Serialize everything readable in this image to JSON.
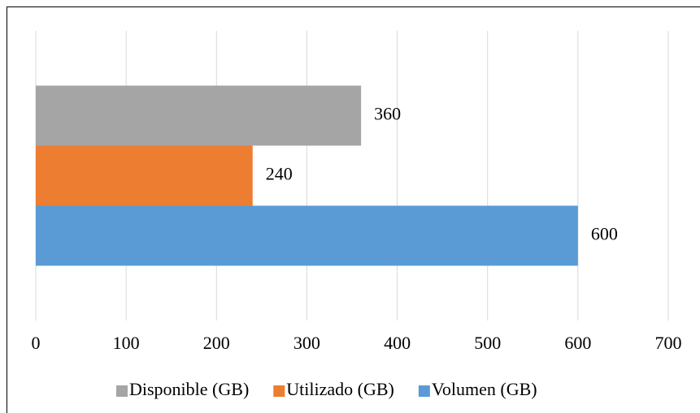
{
  "chart_data": {
    "type": "bar",
    "orientation": "horizontal",
    "categories": [
      null
    ],
    "series": [
      {
        "name": "Disponible (GB)",
        "color": "#a5a5a5",
        "values": [
          360
        ]
      },
      {
        "name": "Utilizado (GB)",
        "color": "#ed7d31",
        "values": [
          240
        ]
      },
      {
        "name": "Volumen (GB)",
        "color": "#5b9bd5",
        "values": [
          600
        ]
      }
    ],
    "xlim": [
      0,
      700
    ],
    "xticks": [
      0,
      100,
      200,
      300,
      400,
      500,
      600,
      700
    ],
    "grid": true,
    "legend": "bottom"
  }
}
